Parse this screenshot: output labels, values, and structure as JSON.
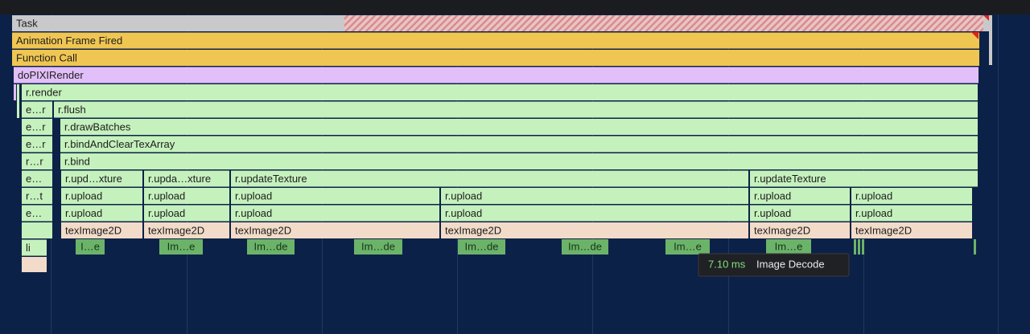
{
  "rows": [
    [
      "Task"
    ],
    [
      "Animation Frame Fired"
    ],
    [
      "Function Call"
    ],
    [
      "doPIXIRender"
    ],
    [
      "r.render"
    ],
    [
      "e…r",
      "r.flush"
    ],
    [
      "e…r",
      "r.drawBatches"
    ],
    [
      "e…r",
      "r.bindAndClearTexArray"
    ],
    [
      "r…r",
      "r.bind"
    ],
    [
      "e…",
      "r.upd…xture",
      "r.upda…xture",
      "r.updateTexture",
      "r.updateTexture"
    ],
    [
      "r…t",
      "r.upload",
      "r.upload",
      "r.upload",
      "r.upload",
      "r.upload",
      "r.upload"
    ],
    [
      "e…",
      "r.upload",
      "r.upload",
      "r.upload",
      "r.upload",
      "r.upload",
      "r.upload"
    ],
    [
      "texImage2D",
      "texImage2D",
      "texImage2D",
      "texImage2D",
      "texImage2D",
      "texImage2D"
    ],
    [
      "li"
    ]
  ],
  "image_decodes": [
    "I…e",
    "Im…e",
    "Im…de",
    "Im…de",
    "Im…de",
    "Im…de",
    "Im…e",
    "Im…e"
  ],
  "tooltip": {
    "duration": "7.10 ms",
    "name": "Image Decode"
  }
}
